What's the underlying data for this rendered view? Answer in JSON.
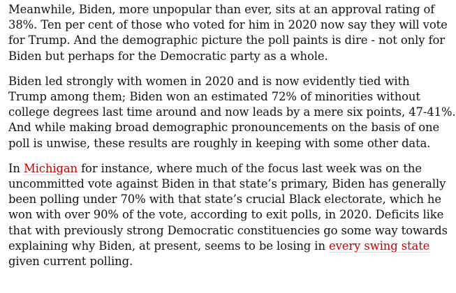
{
  "article": {
    "paragraphs": [
      {
        "lines": [
          "Meanwhile, Biden, more unpopular than ever, sits at an approval rating of",
          "38%. Ten per cent of those who voted for him in 2020 now say they will vote",
          "for Trump. And the demographic picture the poll paints is dire - not only for",
          "Biden but perhaps for the Democratic party as a whole."
        ]
      },
      {
        "lines": [
          "Biden led strongly with women in 2020 and is now evidently tied with",
          "Trump among them; Biden won an estimated 72% of minorities without",
          "college degrees last time around and now leads by a mere six points, 47-41%.",
          "And while making broad demographic pronouncements on the basis of one",
          "poll is unwise, these results are roughly in keeping with some other data."
        ]
      },
      {
        "line1_before": "In ",
        "link_michigan": "Michigan",
        "line1_after": " for instance, where much of the focus last week was on the",
        "line2": "uncommitted vote against Biden in that state’s primary, Biden has generally",
        "line3": "been polling under 70% with that state’s crucial Black electorate, which he",
        "line4": "won with over 90% of the vote, according to exit polls, in 2020. Deficits like",
        "line5": "that with previously strong Democratic constituencies go some way towards",
        "line6_before": "explaining why Biden, at present, seems to be losing in ",
        "link_swing": "every swing state",
        "line7": "given current polling."
      }
    ],
    "link_color": "#c70000",
    "text_color": "#121212"
  }
}
